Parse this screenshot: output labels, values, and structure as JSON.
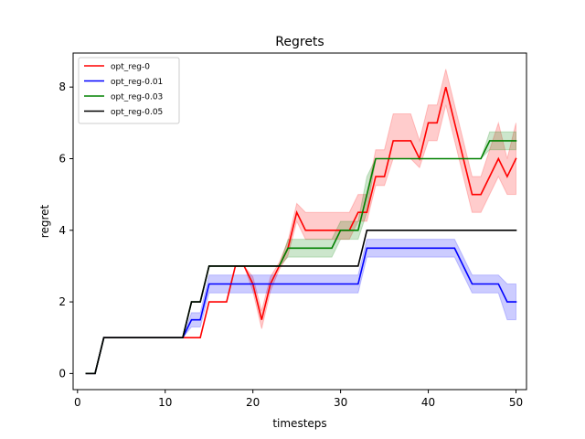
{
  "chart_data": {
    "type": "line",
    "title": "Regrets",
    "xlabel": "timesteps",
    "ylabel": "regret",
    "xlim": [
      -0.5,
      51.2
    ],
    "ylim": [
      -0.45,
      8.95
    ],
    "xticks": [
      0,
      10,
      20,
      30,
      40,
      50
    ],
    "yticks": [
      0,
      2,
      4,
      6,
      8
    ],
    "grid": false,
    "legend_position": "top-left",
    "series": [
      {
        "name": "opt_reg-0",
        "color": "#ff0000",
        "band": true,
        "points": [
          [
            1,
            0
          ],
          [
            2,
            0
          ],
          [
            3,
            1
          ],
          [
            12,
            1
          ],
          [
            13,
            1
          ],
          [
            14,
            1
          ],
          [
            15,
            2
          ],
          [
            17,
            2
          ],
          [
            18,
            3
          ],
          [
            19,
            3
          ],
          [
            20,
            2.5
          ],
          [
            21,
            1.5
          ],
          [
            22,
            2.5
          ],
          [
            23,
            3
          ],
          [
            24,
            3.5
          ],
          [
            25,
            4.5
          ],
          [
            26,
            4
          ],
          [
            30,
            4
          ],
          [
            31,
            4
          ],
          [
            32,
            4.5
          ],
          [
            33,
            4.5
          ],
          [
            34,
            5.5
          ],
          [
            35,
            5.5
          ],
          [
            36,
            6.5
          ],
          [
            38,
            6.5
          ],
          [
            39,
            6
          ],
          [
            40,
            7
          ],
          [
            41,
            7
          ],
          [
            42,
            8
          ],
          [
            43,
            7
          ],
          [
            44,
            6
          ],
          [
            45,
            5
          ],
          [
            46,
            5
          ],
          [
            48,
            6
          ],
          [
            49,
            5.5
          ],
          [
            50,
            6
          ]
        ],
        "lower": [
          [
            1,
            0
          ],
          [
            2,
            0
          ],
          [
            3,
            1
          ],
          [
            12,
            1
          ],
          [
            13,
            1
          ],
          [
            14,
            1
          ],
          [
            15,
            2
          ],
          [
            17,
            2
          ],
          [
            18,
            3
          ],
          [
            19,
            3
          ],
          [
            20,
            2.3
          ],
          [
            21,
            1.25
          ],
          [
            22,
            2.3
          ],
          [
            23,
            2.9
          ],
          [
            24,
            3.3
          ],
          [
            25,
            4.25
          ],
          [
            26,
            3.75
          ],
          [
            30,
            3.75
          ],
          [
            31,
            3.75
          ],
          [
            32,
            4.25
          ],
          [
            33,
            4.25
          ],
          [
            34,
            5.25
          ],
          [
            35,
            5.25
          ],
          [
            36,
            6
          ],
          [
            38,
            6
          ],
          [
            39,
            5.75
          ],
          [
            40,
            6.5
          ],
          [
            41,
            6.5
          ],
          [
            42,
            7.5
          ],
          [
            43,
            6.5
          ],
          [
            44,
            5.5
          ],
          [
            45,
            4.5
          ],
          [
            46,
            4.5
          ],
          [
            48,
            5.5
          ],
          [
            49,
            5
          ],
          [
            50,
            5
          ]
        ],
        "upper": [
          [
            1,
            0
          ],
          [
            2,
            0
          ],
          [
            3,
            1
          ],
          [
            12,
            1
          ],
          [
            13,
            1
          ],
          [
            14,
            1
          ],
          [
            15,
            2
          ],
          [
            17,
            2
          ],
          [
            18,
            3
          ],
          [
            19,
            3
          ],
          [
            20,
            2.7
          ],
          [
            21,
            1.75
          ],
          [
            22,
            2.7
          ],
          [
            23,
            3.1
          ],
          [
            24,
            3.7
          ],
          [
            25,
            4.75
          ],
          [
            26,
            4.5
          ],
          [
            30,
            4.5
          ],
          [
            31,
            4.5
          ],
          [
            32,
            5
          ],
          [
            33,
            5
          ],
          [
            34,
            6.25
          ],
          [
            35,
            6.25
          ],
          [
            36,
            7.25
          ],
          [
            38,
            7.25
          ],
          [
            39,
            6.5
          ],
          [
            40,
            7.5
          ],
          [
            41,
            7.5
          ],
          [
            42,
            8.5
          ],
          [
            43,
            7.5
          ],
          [
            44,
            6.5
          ],
          [
            45,
            5.5
          ],
          [
            46,
            5.5
          ],
          [
            48,
            7
          ],
          [
            49,
            6
          ],
          [
            50,
            7
          ]
        ]
      },
      {
        "name": "opt_reg-0.01",
        "color": "#0000ff",
        "band": true,
        "points": [
          [
            1,
            0
          ],
          [
            2,
            0
          ],
          [
            3,
            1
          ],
          [
            12,
            1
          ],
          [
            13,
            1.5
          ],
          [
            14,
            1.5
          ],
          [
            15,
            2.5
          ],
          [
            32,
            2.5
          ],
          [
            33,
            3.5
          ],
          [
            43,
            3.5
          ],
          [
            45,
            2.5
          ],
          [
            48,
            2.5
          ],
          [
            49,
            2
          ],
          [
            50,
            2
          ]
        ],
        "lower": [
          [
            1,
            0
          ],
          [
            2,
            0
          ],
          [
            3,
            1
          ],
          [
            12,
            1
          ],
          [
            13,
            1.3
          ],
          [
            14,
            1.3
          ],
          [
            15,
            2.25
          ],
          [
            32,
            2.25
          ],
          [
            33,
            3.25
          ],
          [
            43,
            3.25
          ],
          [
            45,
            2.25
          ],
          [
            48,
            2.25
          ],
          [
            49,
            1.5
          ],
          [
            50,
            1.5
          ]
        ],
        "upper": [
          [
            1,
            0
          ],
          [
            2,
            0
          ],
          [
            3,
            1
          ],
          [
            12,
            1
          ],
          [
            13,
            1.7
          ],
          [
            14,
            1.7
          ],
          [
            15,
            2.75
          ],
          [
            32,
            2.75
          ],
          [
            33,
            3.75
          ],
          [
            43,
            3.75
          ],
          [
            45,
            2.75
          ],
          [
            48,
            2.75
          ],
          [
            49,
            2.5
          ],
          [
            50,
            2.5
          ]
        ]
      },
      {
        "name": "opt_reg-0.03",
        "color": "#008000",
        "band": true,
        "points": [
          [
            1,
            0
          ],
          [
            2,
            0
          ],
          [
            3,
            1
          ],
          [
            12,
            1
          ],
          [
            13,
            2
          ],
          [
            14,
            2
          ],
          [
            15,
            3
          ],
          [
            23,
            3
          ],
          [
            24,
            3.5
          ],
          [
            29,
            3.5
          ],
          [
            30,
            4
          ],
          [
            32,
            4
          ],
          [
            33,
            5
          ],
          [
            34,
            6
          ],
          [
            46,
            6
          ],
          [
            47,
            6.5
          ],
          [
            50,
            6.5
          ]
        ],
        "lower": [
          [
            1,
            0
          ],
          [
            2,
            0
          ],
          [
            3,
            1
          ],
          [
            12,
            1
          ],
          [
            13,
            2
          ],
          [
            14,
            2
          ],
          [
            15,
            3
          ],
          [
            23,
            3
          ],
          [
            24,
            3.25
          ],
          [
            29,
            3.25
          ],
          [
            30,
            3.75
          ],
          [
            32,
            3.75
          ],
          [
            33,
            4.5
          ],
          [
            34,
            6
          ],
          [
            46,
            6
          ],
          [
            47,
            6.25
          ],
          [
            50,
            6.25
          ]
        ],
        "upper": [
          [
            1,
            0
          ],
          [
            2,
            0
          ],
          [
            3,
            1
          ],
          [
            12,
            1
          ],
          [
            13,
            2
          ],
          [
            14,
            2
          ],
          [
            15,
            3
          ],
          [
            23,
            3
          ],
          [
            24,
            3.75
          ],
          [
            29,
            3.75
          ],
          [
            30,
            4.25
          ],
          [
            32,
            4.25
          ],
          [
            33,
            5.5
          ],
          [
            34,
            6
          ],
          [
            46,
            6
          ],
          [
            47,
            6.75
          ],
          [
            50,
            6.75
          ]
        ]
      },
      {
        "name": "opt_reg-0.05",
        "color": "#000000",
        "band": false,
        "points": [
          [
            1,
            0
          ],
          [
            2,
            0
          ],
          [
            3,
            1
          ],
          [
            12,
            1
          ],
          [
            13,
            2
          ],
          [
            14,
            2
          ],
          [
            15,
            3
          ],
          [
            32,
            3
          ],
          [
            33,
            4
          ],
          [
            50,
            4
          ]
        ]
      }
    ]
  }
}
